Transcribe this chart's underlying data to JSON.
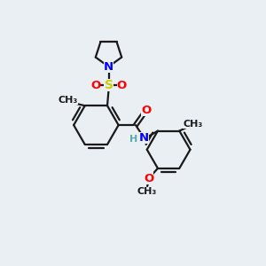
{
  "bg_color": "#eaeff3",
  "bond_color": "#1a1a1a",
  "N_color": "#0000ff",
  "O_color": "#ff0000",
  "S_color": "#cccc00",
  "H_color": "#5aabab",
  "lw": 1.6,
  "fs": 9.5,
  "xlim": [
    0,
    10
  ],
  "ylim": [
    0,
    10
  ]
}
